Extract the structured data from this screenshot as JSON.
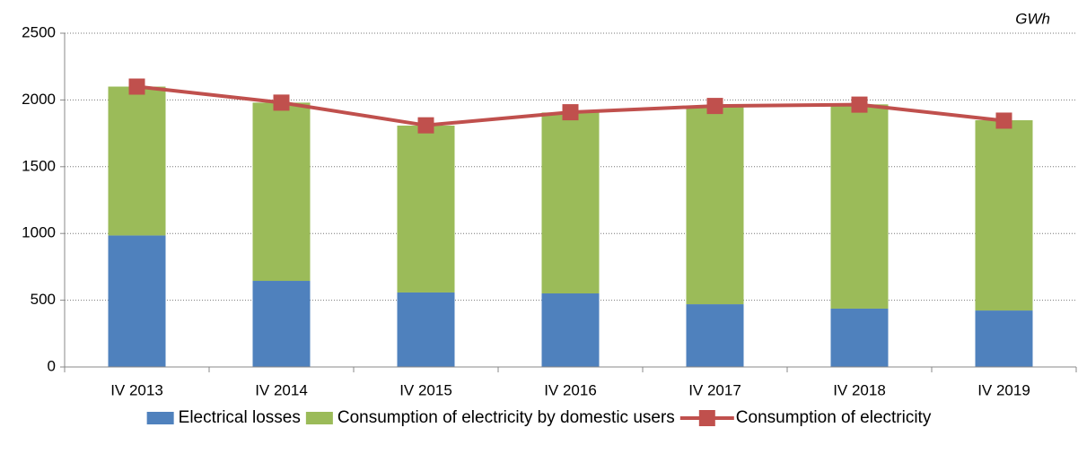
{
  "chart_data": {
    "type": "bar_line",
    "unit_label": "GWh",
    "categories": [
      "IV 2013",
      "IV 2014",
      "IV 2015",
      "IV 2016",
      "IV 2017",
      "IV 2018",
      "IV 2019"
    ],
    "series": [
      {
        "name": "Electrical losses",
        "color": "#4f81bd",
        "type": "bar",
        "values": [
          985,
          645,
          558,
          551,
          470,
          437,
          423
        ]
      },
      {
        "name": "Consumption of electricity by domestic users",
        "color": "#9bbb59",
        "type": "bar",
        "values": [
          1115,
          1335,
          1250,
          1355,
          1485,
          1530,
          1425
        ]
      },
      {
        "name": "Consumption of electricity",
        "color": "#c0504d",
        "type": "line",
        "values": [
          2100,
          1980,
          1810,
          1908,
          1955,
          1965,
          1845
        ]
      }
    ],
    "ylim": [
      0,
      2500
    ],
    "yticks": [
      0,
      500,
      1000,
      1500,
      2000,
      2500
    ],
    "grid": true,
    "legend": "bottom"
  }
}
